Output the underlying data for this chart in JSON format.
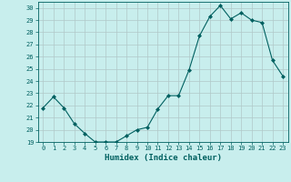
{
  "x": [
    0,
    1,
    2,
    3,
    4,
    5,
    6,
    7,
    8,
    9,
    10,
    11,
    12,
    13,
    14,
    15,
    16,
    17,
    18,
    19,
    20,
    21,
    22,
    23
  ],
  "y": [
    21.8,
    22.7,
    21.8,
    20.5,
    19.7,
    19.0,
    19.0,
    19.0,
    19.5,
    20.0,
    20.2,
    21.7,
    22.8,
    22.8,
    24.9,
    27.7,
    29.3,
    30.2,
    29.1,
    29.6,
    29.0,
    28.8,
    25.7,
    24.4
  ],
  "line_color": "#006060",
  "marker": "D",
  "markersize": 2,
  "linewidth": 0.8,
  "xlabel": "Humidex (Indice chaleur)",
  "xlim": [
    -0.5,
    23.5
  ],
  "ylim": [
    19,
    30.5
  ],
  "yticks": [
    19,
    20,
    21,
    22,
    23,
    24,
    25,
    26,
    27,
    28,
    29,
    30
  ],
  "xtick_labels": [
    "0",
    "1",
    "2",
    "3",
    "4",
    "5",
    "6",
    "7",
    "8",
    "9",
    "10",
    "11",
    "12",
    "13",
    "14",
    "15",
    "16",
    "17",
    "18",
    "19",
    "20",
    "21",
    "22",
    "23"
  ],
  "background_color": "#c8eeed",
  "grid_color": "#b0c8c8",
  "text_color": "#006060",
  "tick_fontsize": 5,
  "xlabel_fontsize": 6.5
}
